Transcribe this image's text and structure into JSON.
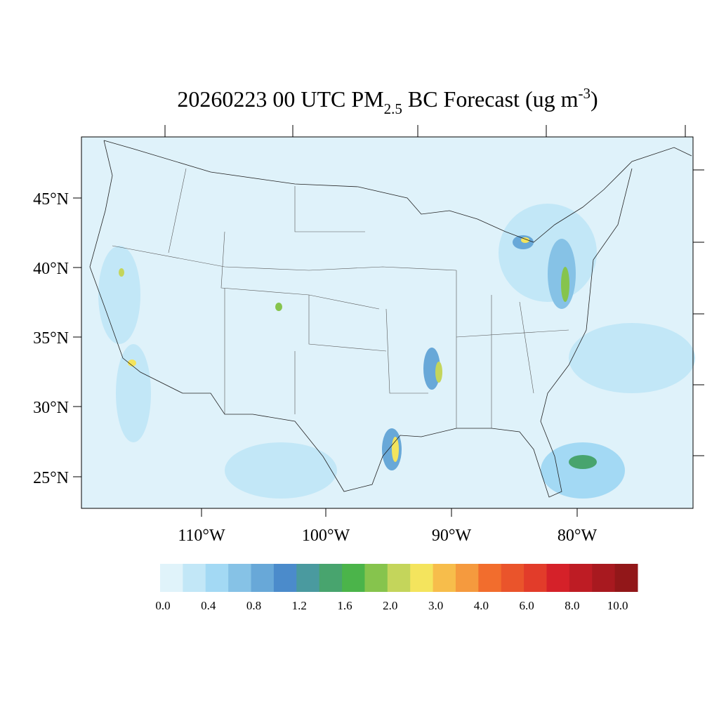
{
  "title": {
    "main": "20260223 00 UTC PM",
    "sub": "2.5",
    "rest": " BC Forecast (ug m",
    "sup": "-3",
    "end": ")"
  },
  "lat_labels": [
    "45°N",
    "40°N",
    "35°N",
    "30°N",
    "25°N"
  ],
  "lon_labels": [
    "110°W",
    "100°W",
    "90°W",
    "80°W"
  ],
  "colorbar": {
    "colors": [
      "#e0f3fa",
      "#c2e7f7",
      "#a3d9f4",
      "#86c2e6",
      "#68a8d8",
      "#4b8bcb",
      "#4a9a9f",
      "#48a46e",
      "#4bb44a",
      "#86c44d",
      "#c4d55b",
      "#f4e45d",
      "#f7bd4b",
      "#f59a3e",
      "#f26d2d",
      "#ea542b",
      "#e23c2a",
      "#d52129",
      "#be1c24",
      "#a8191f",
      "#921719"
    ],
    "labels": [
      "0.0",
      "0.4",
      "0.8",
      "1.2",
      "1.6",
      "2.0",
      "3.0",
      "4.0",
      "6.0",
      "8.0",
      "10.0"
    ]
  }
}
